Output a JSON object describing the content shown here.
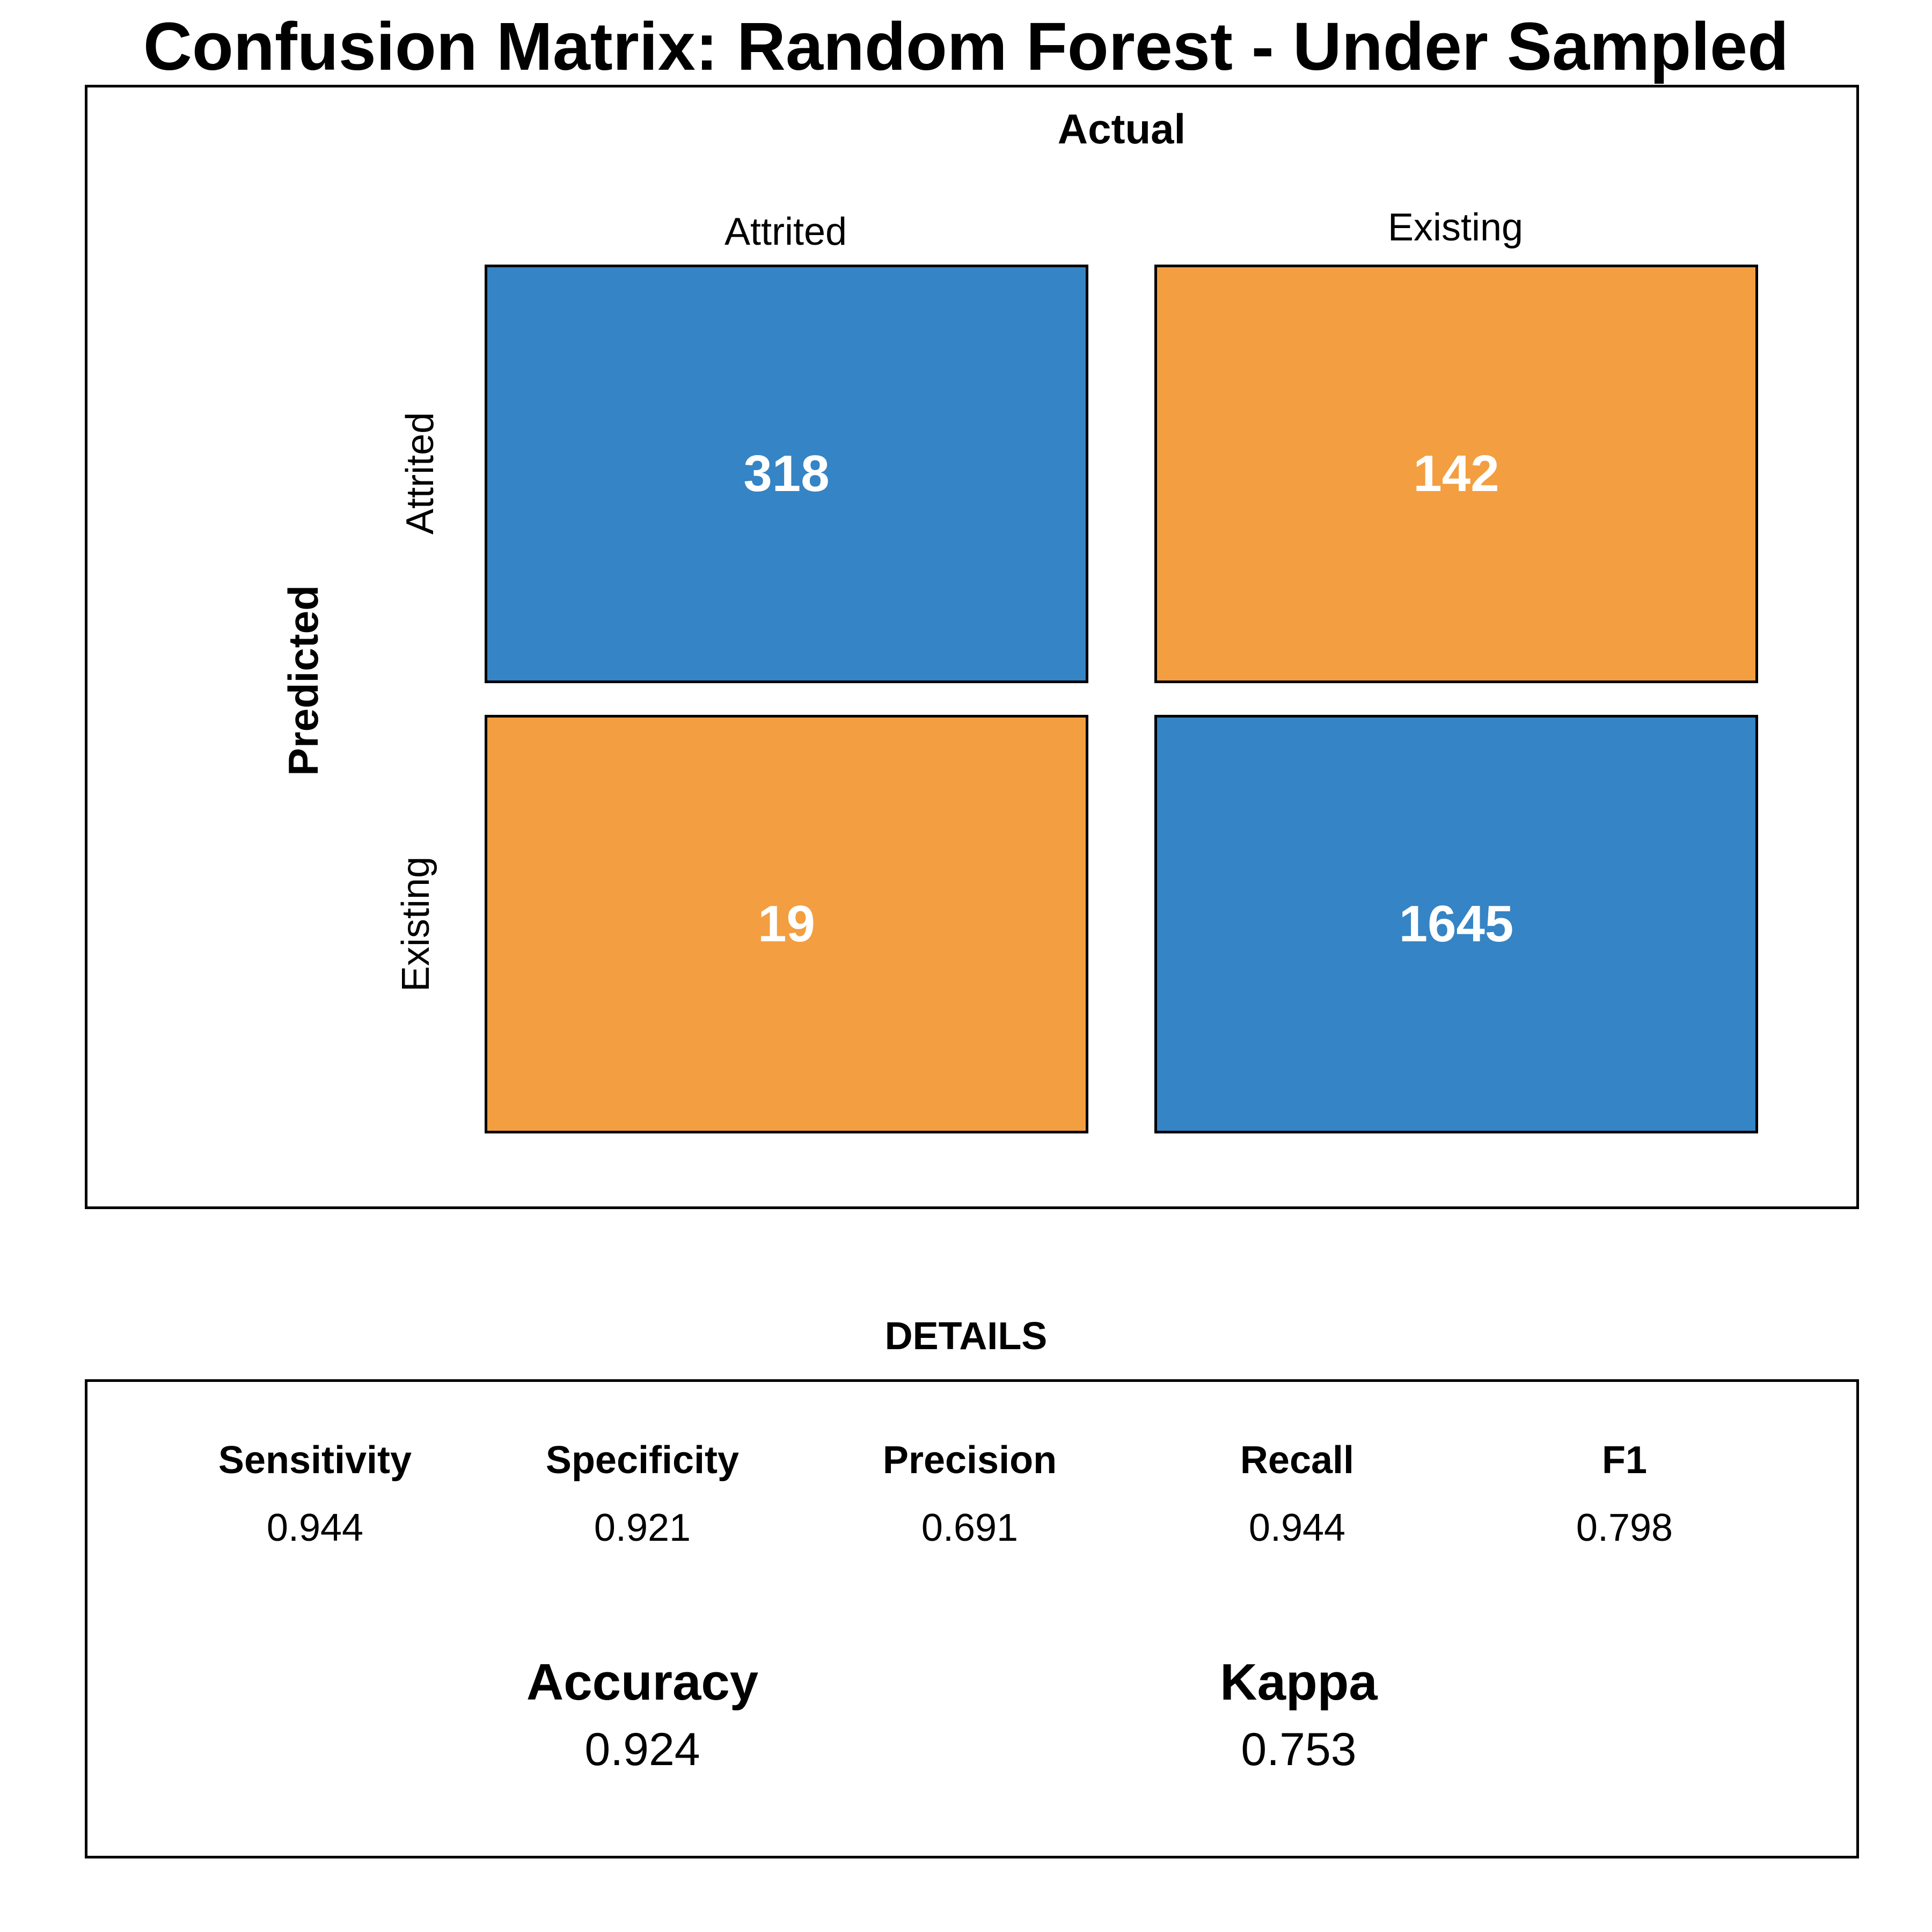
{
  "title": "Confusion Matrix: Random Forest - Under Sampled",
  "chart_data": {
    "type": "heatmap",
    "title": "Confusion Matrix: Random Forest - Under Sampled",
    "xlabel": "Actual",
    "ylabel": "Predicted",
    "x_categories": [
      "Attrited",
      "Existing"
    ],
    "y_categories": [
      "Attrited",
      "Existing"
    ],
    "matrix": [
      [
        318,
        142
      ],
      [
        19,
        1645
      ]
    ],
    "colors": {
      "correct": "#3584C5",
      "incorrect": "#F39E40"
    }
  },
  "details": {
    "title": "DETAILS",
    "metrics": [
      {
        "label": "Sensitivity",
        "value": "0.944"
      },
      {
        "label": "Specificity",
        "value": "0.921"
      },
      {
        "label": "Precision",
        "value": "0.691"
      },
      {
        "label": "Recall",
        "value": "0.944"
      },
      {
        "label": "F1",
        "value": "0.798"
      }
    ],
    "accuracy": {
      "label": "Accuracy",
      "value": "0.924"
    },
    "kappa": {
      "label": "Kappa",
      "value": "0.753"
    }
  }
}
